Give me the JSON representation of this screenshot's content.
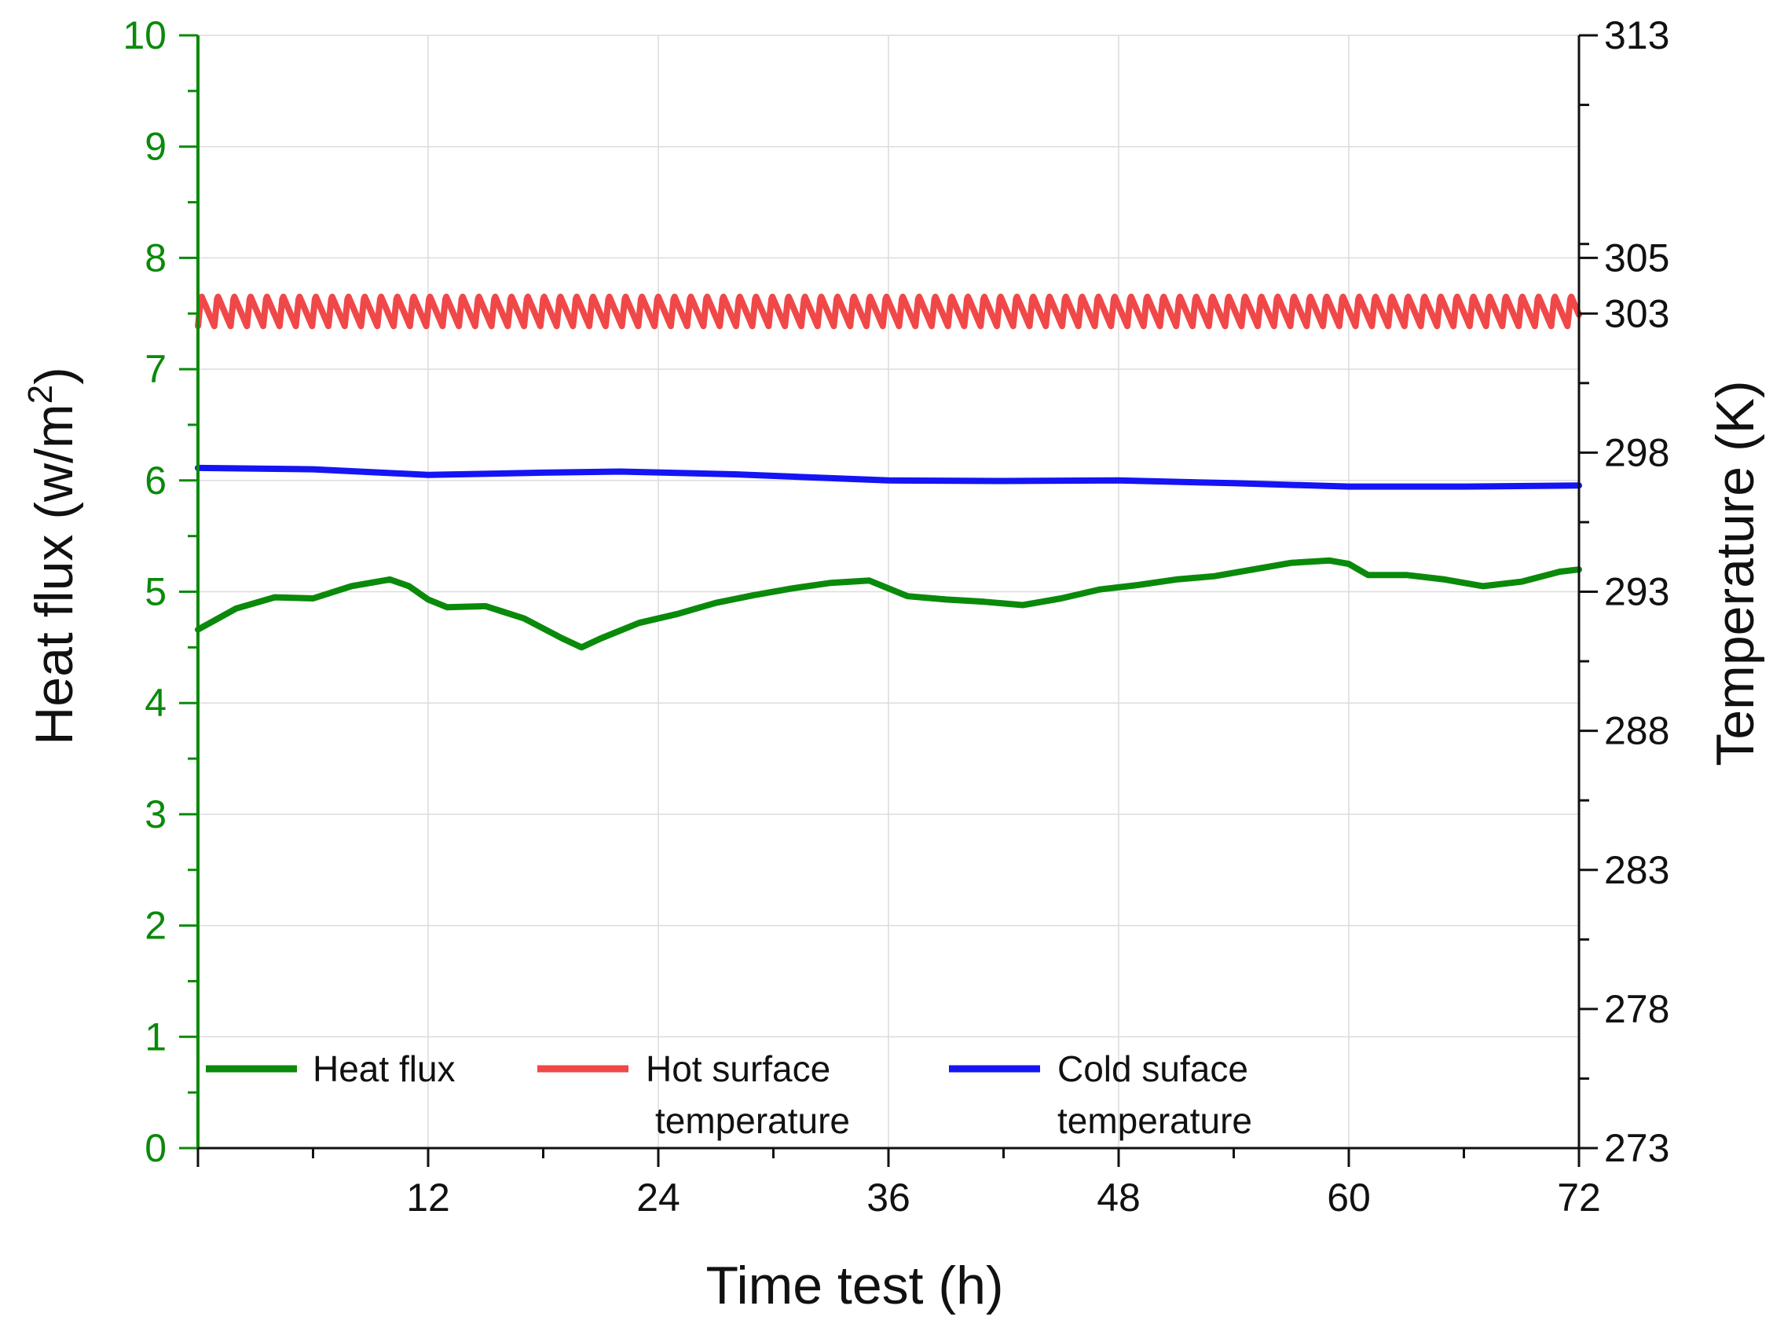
{
  "colors": {
    "heat_flux": "#0a8a0a",
    "hot_surface": "#f04848",
    "cold_surface": "#1414f5",
    "left_axis": "#0a8a0a",
    "right_axis": "#111111",
    "grid": "#dcdcdc"
  },
  "chart_data": {
    "type": "line",
    "title": "",
    "xlabel": "Time test (h)",
    "ylabel_left": "Heat flux (w/m",
    "ylabel_left_sup": "2",
    "ylabel_left_close": ")",
    "ylabel_right": "Temperature (K)",
    "xlim": [
      0,
      72
    ],
    "ylim_left": [
      0,
      10
    ],
    "ylim_right": [
      273,
      313
    ],
    "x_ticks": [
      12,
      24,
      36,
      48,
      60,
      72
    ],
    "x_tick_labels": [
      "12",
      "24",
      "36",
      "48",
      "60",
      "72"
    ],
    "y_left_ticks": [
      0,
      1,
      2,
      3,
      4,
      5,
      6,
      7,
      8,
      9,
      10
    ],
    "y_left_tick_labels": [
      "0",
      "1",
      "2",
      "3",
      "4",
      "5",
      "6",
      "7",
      "8",
      "9",
      "10"
    ],
    "y_right_ticks": [
      273,
      278,
      283,
      288,
      293,
      298,
      303,
      305,
      313
    ],
    "y_right_tick_labels": [
      "273",
      "278",
      "283",
      "288",
      "293",
      "298",
      "303",
      "305",
      "313"
    ],
    "grid": true,
    "legend_position": "bottom-left",
    "legend": {
      "heat_flux": [
        "Heat flux"
      ],
      "hot_surface": [
        "Hot surface",
        "temperature"
      ],
      "cold_surface": [
        "Cold suface",
        "temperature"
      ]
    },
    "series": [
      {
        "name": "Heat flux",
        "axis": "left",
        "x": [
          0,
          2,
          4,
          6,
          8,
          10,
          11,
          12,
          13,
          15,
          17,
          19,
          20,
          21,
          23,
          25,
          27,
          29,
          31,
          33,
          35,
          37,
          39,
          41,
          43,
          45,
          47,
          49,
          51,
          53,
          55,
          57,
          59,
          60,
          61,
          63,
          65,
          67,
          69,
          71,
          72
        ],
        "values": [
          4.66,
          4.85,
          4.95,
          4.94,
          5.05,
          5.11,
          5.05,
          4.93,
          4.86,
          4.87,
          4.76,
          4.58,
          4.5,
          4.58,
          4.72,
          4.8,
          4.9,
          4.97,
          5.03,
          5.08,
          5.1,
          4.96,
          4.93,
          4.91,
          4.88,
          4.94,
          5.02,
          5.06,
          5.11,
          5.14,
          5.2,
          5.26,
          5.28,
          5.25,
          5.15,
          5.15,
          5.11,
          5.05,
          5.09,
          5.18,
          5.2
        ]
      },
      {
        "name": "Hot surface temperature",
        "axis": "right",
        "baseline": 303.1,
        "amplitude": 0.55,
        "cycle_hours": 0.85,
        "x": [
          0,
          72
        ],
        "values": [
          303.1,
          303.1
        ]
      },
      {
        "name": "Cold suface temperature",
        "axis": "right",
        "x": [
          0,
          6,
          12,
          18,
          22,
          28,
          36,
          42,
          48,
          54,
          60,
          66,
          72
        ],
        "values": [
          297.45,
          297.4,
          297.2,
          297.28,
          297.32,
          297.22,
          297.0,
          296.98,
          297.0,
          296.9,
          296.78,
          296.78,
          296.82
        ]
      }
    ]
  }
}
